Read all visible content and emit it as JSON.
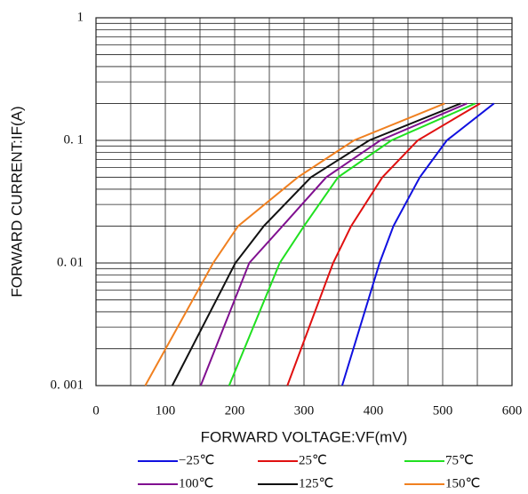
{
  "chart_data": {
    "type": "line",
    "xlabel": "FORWARD VOLTAGE:VF(mV)",
    "ylabel": "FORWARD CURRENT:IF(A)",
    "xlim": [
      0,
      600
    ],
    "xticks": [
      0,
      100,
      200,
      300,
      400,
      500,
      600
    ],
    "ylim": [
      0.001,
      1
    ],
    "log_y": true,
    "yticks": [
      1,
      {
        "value": 0.1,
        "label": "0. 1"
      },
      {
        "value": 0.01,
        "label": "0. 01"
      },
      {
        "value": 0.001,
        "label": "0. 001"
      }
    ],
    "grid": true,
    "minor_grid": true,
    "legend": "bottom",
    "series": [
      {
        "name": "−25℃",
        "color": "#1010e0",
        "x": [
          355,
          409,
          429,
          467,
          506,
          574
        ],
        "values": [
          0.001,
          0.01,
          0.02,
          0.05,
          0.1,
          0.2
        ]
      },
      {
        "name": "25℃",
        "color": "#e01010",
        "x": [
          276,
          342,
          368,
          413,
          464,
          554
        ],
        "values": [
          0.001,
          0.01,
          0.02,
          0.05,
          0.1,
          0.2
        ]
      },
      {
        "name": "75℃",
        "color": "#20e020",
        "x": [
          192,
          265,
          300,
          349,
          426,
          547
        ],
        "values": [
          0.001,
          0.01,
          0.02,
          0.05,
          0.1,
          0.2
        ]
      },
      {
        "name": "100℃",
        "color": "#801090",
        "x": [
          151,
          221,
          269,
          332,
          410,
          535
        ],
        "values": [
          0.001,
          0.01,
          0.02,
          0.05,
          0.1,
          0.2
        ]
      },
      {
        "name": "125℃",
        "color": "#111111",
        "x": [
          110,
          201,
          242,
          310,
          394,
          526
        ],
        "values": [
          0.001,
          0.01,
          0.02,
          0.05,
          0.1,
          0.2
        ]
      },
      {
        "name": "150℃",
        "color": "#f08020",
        "x": [
          71,
          169,
          205,
          291,
          372,
          503
        ],
        "values": [
          0.001,
          0.01,
          0.02,
          0.05,
          0.1,
          0.2
        ]
      }
    ]
  }
}
